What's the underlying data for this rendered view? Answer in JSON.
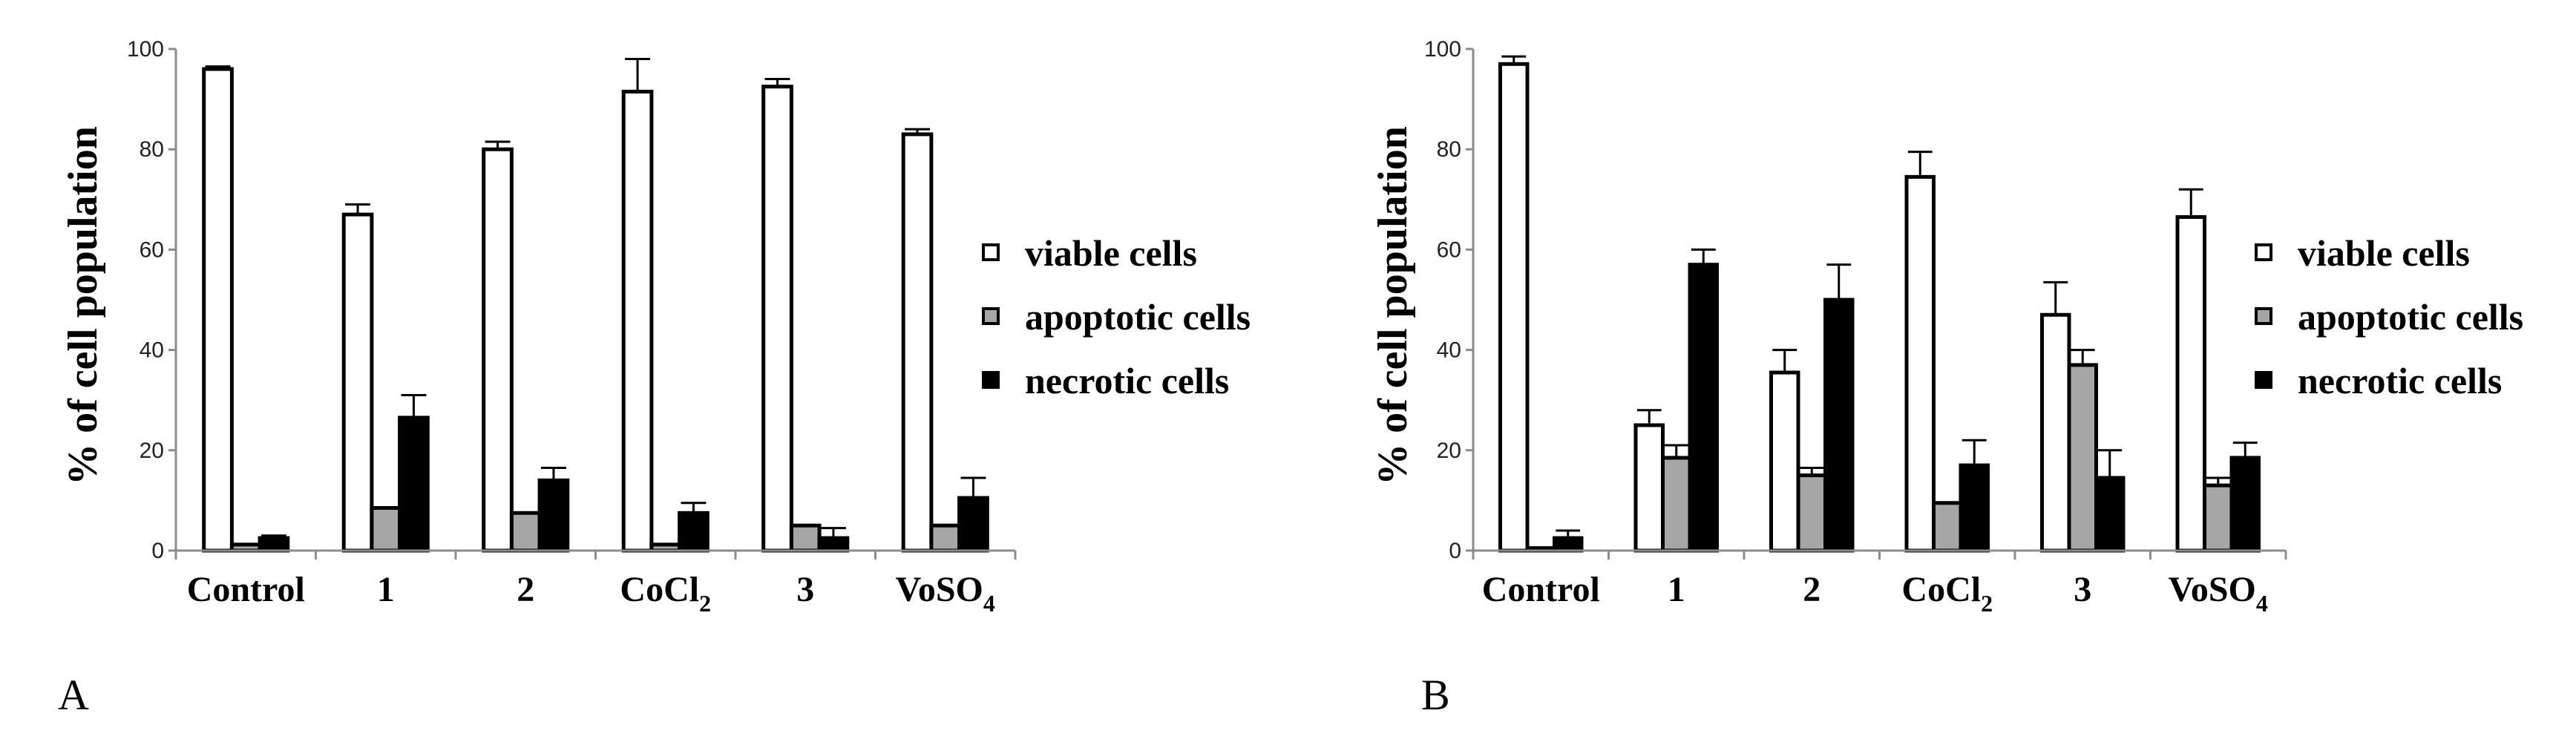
{
  "chart_data": [
    {
      "panel_label": "A",
      "type": "bar",
      "ylabel": "% of cell population",
      "ylim": [
        0,
        100
      ],
      "yticks": [
        0,
        20,
        40,
        60,
        80,
        100
      ],
      "categories": [
        {
          "label": "Control",
          "sub": ""
        },
        {
          "label": "1",
          "sub": ""
        },
        {
          "label": "2",
          "sub": ""
        },
        {
          "label": "CoCl",
          "sub": "2"
        },
        {
          "label": "3",
          "sub": ""
        },
        {
          "label": "VoSO",
          "sub": "4"
        }
      ],
      "legend_position": "right",
      "series": [
        {
          "name": "viable cells",
          "color": "#ffffff",
          "values": [
            96,
            67,
            80,
            91.5,
            92.5,
            83
          ],
          "errors": [
            0.5,
            2,
            1.5,
            6.5,
            1.5,
            1
          ]
        },
        {
          "name": "apoptotic cells",
          "color": "#a6a6a6",
          "values": [
            1.2,
            8.5,
            7.5,
            1.2,
            5,
            5
          ],
          "errors": [
            0,
            0,
            0,
            0,
            0,
            0
          ]
        },
        {
          "name": "necrotic cells",
          "color": "#000000",
          "values": [
            2.5,
            26.5,
            14,
            7.5,
            2.5,
            10.5
          ],
          "errors": [
            0.5,
            4.5,
            2.5,
            2,
            2,
            4
          ]
        }
      ]
    },
    {
      "panel_label": "B",
      "type": "bar",
      "ylabel": "% of cell population",
      "ylim": [
        0,
        100
      ],
      "yticks": [
        0,
        20,
        40,
        60,
        80,
        100
      ],
      "categories": [
        {
          "label": "Control",
          "sub": ""
        },
        {
          "label": "1",
          "sub": ""
        },
        {
          "label": "2",
          "sub": ""
        },
        {
          "label": "CoCl",
          "sub": "2"
        },
        {
          "label": "3",
          "sub": ""
        },
        {
          "label": "VoSO",
          "sub": "4"
        }
      ],
      "legend_position": "right",
      "series": [
        {
          "name": "viable cells",
          "color": "#ffffff",
          "values": [
            97,
            25,
            35.5,
            74.5,
            47,
            66.5
          ],
          "errors": [
            1.5,
            3,
            4.5,
            5,
            6.5,
            5.5
          ]
        },
        {
          "name": "apoptotic cells",
          "color": "#a6a6a6",
          "values": [
            0.5,
            18.5,
            15,
            9.5,
            37,
            13
          ],
          "errors": [
            0,
            2.5,
            1.5,
            0,
            3,
            1.5
          ]
        },
        {
          "name": "necrotic cells",
          "color": "#000000",
          "values": [
            2.5,
            57,
            50,
            17,
            14.5,
            18.5
          ],
          "errors": [
            1.5,
            3,
            7,
            5,
            5.5,
            3
          ]
        }
      ]
    }
  ]
}
